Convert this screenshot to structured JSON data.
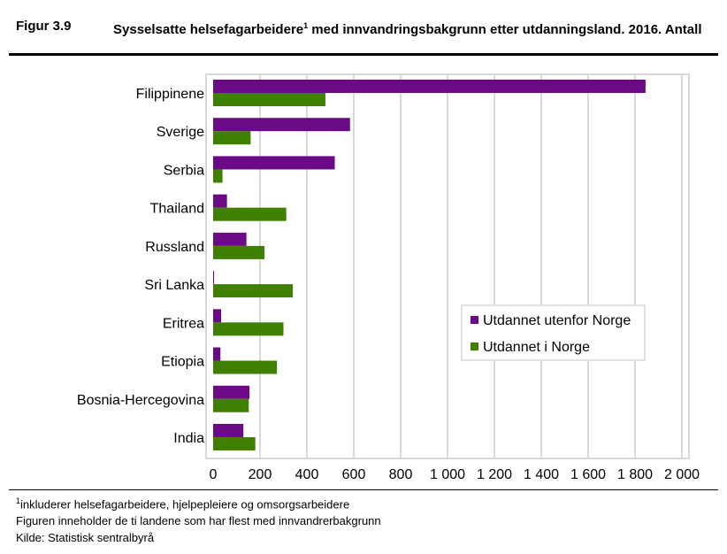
{
  "header": {
    "figure_number": "Figur 3.9",
    "title_part1": "Sysselsatte helsefagarbeidere",
    "title_sup": "1",
    "title_part2": " med innvandringsbakgrunn etter utdanningsland. 2016. Antall"
  },
  "notes": {
    "footnote_sup": "1",
    "footnote": "inkluderer helsefagarbeidere, hjelpepleiere og omsorgsarbeidere",
    "line2": "Figuren inneholder de ti landene som har flest med innvandrerbakgrunn",
    "source": "Kilde: Statistisk sentralbyrå"
  },
  "chart_data": {
    "type": "bar",
    "orientation": "horizontal",
    "title": "Sysselsatte helsefagarbeidere med innvandringsbakgrunn etter utdanningsland. 2016. Antall",
    "categories": [
      "Filippinene",
      "Sverige",
      "Serbia",
      "Thailand",
      "Russland",
      "Sri Lanka",
      "Eritrea",
      "Etiopia",
      "Bosnia-Hercegovina",
      "India"
    ],
    "series": [
      {
        "name": "Utdannet utenfor Norge",
        "color": "#6a0a87",
        "values": [
          1845,
          584,
          519,
          59,
          142,
          4,
          34,
          31,
          155,
          129
        ]
      },
      {
        "name": "Utdannet i Norge",
        "color": "#3f8000",
        "values": [
          479,
          160,
          40,
          312,
          219,
          340,
          300,
          272,
          152,
          180
        ]
      }
    ],
    "xlim": [
      0,
      2000
    ],
    "xticks": [
      0,
      200,
      400,
      600,
      800,
      1000,
      1200,
      1400,
      1600,
      1800,
      2000
    ],
    "xtick_labels": [
      "0",
      "200",
      "400",
      "600",
      "800",
      "1 000",
      "1 200",
      "1 400",
      "1 600",
      "1 800",
      "2 000"
    ],
    "grid": true,
    "legend": "center-right"
  }
}
